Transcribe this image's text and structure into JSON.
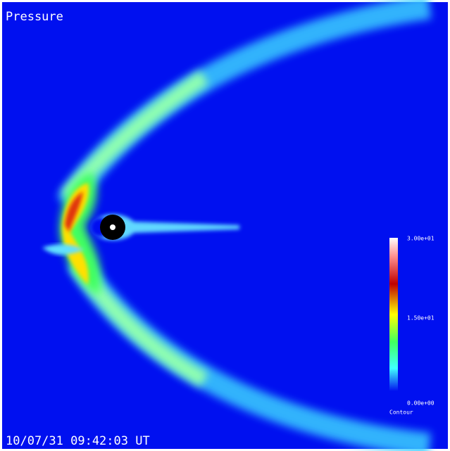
{
  "title": "Pressure",
  "colorbar": {
    "labels": [
      "3.00e+01",
      "1.50e+01",
      "0.00e+00"
    ],
    "caption": "Contour"
  },
  "timestamp": "10/07/31 09:42:03 UT"
}
